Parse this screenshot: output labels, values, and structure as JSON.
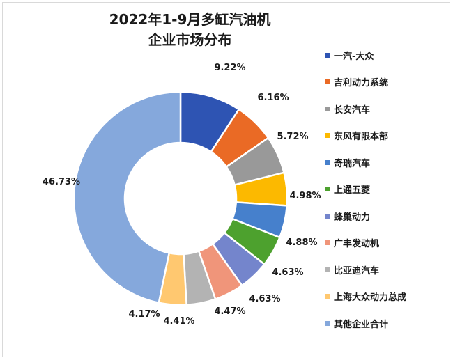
{
  "chart_data": {
    "type": "pie",
    "title_line1": "2022年1-9月多缸汽油机",
    "title_line2": "企业市场分布",
    "categories": [
      "一汽-大众",
      "吉利动力系统",
      "长安汽车",
      "东风有限本部",
      "奇瑞汽车",
      "上通五菱",
      "蜂巢动力",
      "广丰发动机",
      "比亚迪汽车",
      "上海大众动力总成",
      "其他企业合计"
    ],
    "values": [
      9.22,
      6.16,
      5.72,
      4.98,
      4.88,
      4.63,
      4.63,
      4.47,
      4.41,
      4.17,
      46.73
    ],
    "value_labels": [
      "9.22%",
      "6.16%",
      "5.72%",
      "4.98%",
      "4.88%",
      "4.63%",
      "4.63%",
      "4.47%",
      "4.41%",
      "4.17%",
      "46.73%"
    ],
    "colors": [
      "#2e54b3",
      "#ea6a25",
      "#999999",
      "#fcb900",
      "#4680cc",
      "#4da12e",
      "#7485cc",
      "#f0957a",
      "#b3b3b3",
      "#ffc870",
      "#85a8dc"
    ],
    "legend_position": "right",
    "donut": true
  }
}
